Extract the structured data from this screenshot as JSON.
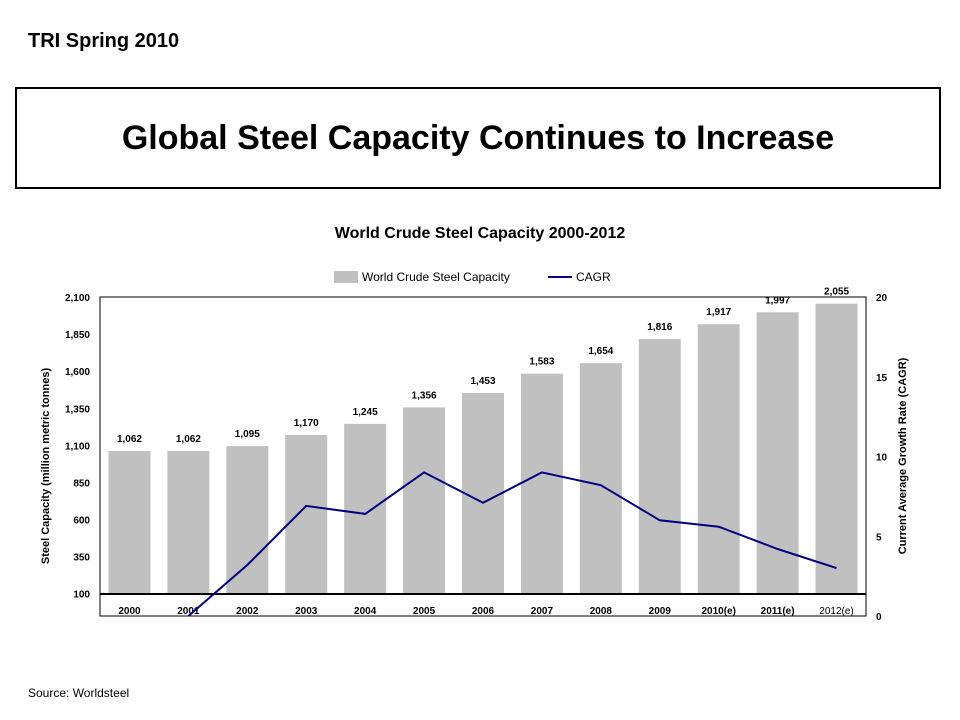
{
  "header": {
    "tag": "TRI Spring 2010",
    "title": "Global Steel Capacity Continues to Increase"
  },
  "footer": {
    "source": "Source: Worldsteel"
  },
  "colors": {
    "bar": "#c0c0c0",
    "line": "#000080",
    "axis": "#000000"
  },
  "chart_data": {
    "type": "bar",
    "title": "World Crude Steel Capacity 2000-2012",
    "categories": [
      "2000",
      "2001",
      "2002",
      "2003",
      "2004",
      "2005",
      "2006",
      "2007",
      "2008",
      "2009",
      "2010(e)",
      "2011(e)",
      "2012(e)"
    ],
    "series": [
      {
        "name": "World Crude Steel Capacity",
        "type": "bar",
        "axis": "left",
        "values": [
          1062,
          1062,
          1095,
          1170,
          1245,
          1356,
          1453,
          1583,
          1654,
          1816,
          1917,
          1997,
          2055
        ],
        "labels": [
          "1,062",
          "1,062",
          "1,095",
          "1,170",
          "1,245",
          "1,356",
          "1,453",
          "1,583",
          "1,654",
          "1,816",
          "1,917",
          "1,997",
          "2,055"
        ]
      },
      {
        "name": "CAGR",
        "type": "line",
        "axis": "right",
        "values": [
          null,
          0,
          3.2,
          6.9,
          6.4,
          9.0,
          7.1,
          9.0,
          8.2,
          6.0,
          5.6,
          4.2,
          3.0
        ]
      }
    ],
    "ylabel": "Steel Capacity (million metric tonnes)",
    "y2label": "Current Average Growth Rate (CAGR)",
    "yticks": [
      "100",
      "350",
      "600",
      "850",
      "1,100",
      "1,350",
      "1,600",
      "1,850",
      "2,100"
    ],
    "ylim": [
      -50,
      2100
    ],
    "y2ticks": [
      "0",
      "5",
      "10",
      "15",
      "20"
    ],
    "y2lim": [
      0,
      20
    ],
    "legend_position": "top"
  }
}
